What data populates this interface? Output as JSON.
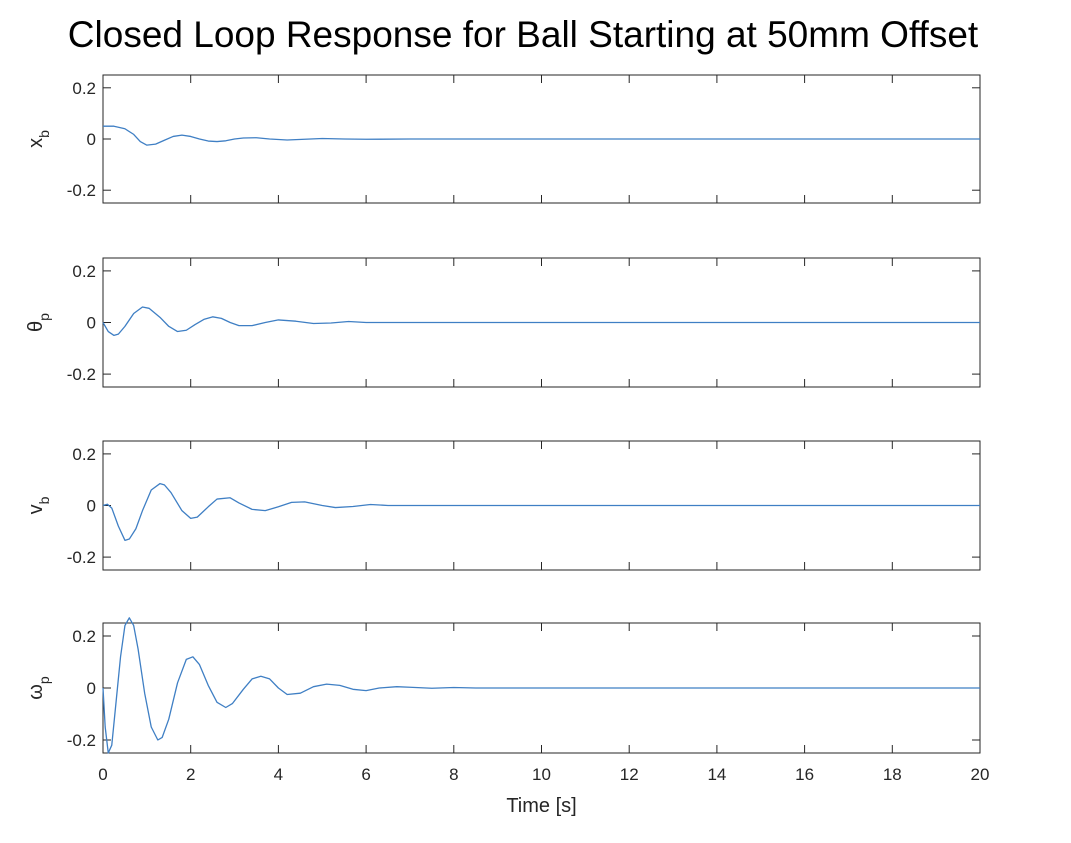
{
  "title": "Closed Loop Response for Ball Starting at 50mm Offset",
  "colors": {
    "line": "#3f7fc4",
    "axes": "#262626",
    "background": "#ffffff"
  },
  "chart_data": {
    "type": "line",
    "layout": "4 stacked subplots sharing x axis",
    "title": "Closed Loop Response for Ball Starting at 50mm Offset",
    "xlabel": "Time [s]",
    "xlim": [
      0,
      20
    ],
    "xticks": [
      0,
      2,
      4,
      6,
      8,
      10,
      12,
      14,
      16,
      18,
      20
    ],
    "grid": false,
    "subplots": [
      {
        "ylabel": "x",
        "ylabel_sub": "b",
        "ylim": [
          -0.25,
          0.25
        ],
        "yticks": [
          -0.2,
          0,
          0.2
        ],
        "yticklabels": [
          "-0.2",
          "0",
          "0.2"
        ],
        "series": [
          {
            "x": [
              0,
              0.25,
              0.5,
              0.7,
              0.85,
              1.0,
              1.2,
              1.4,
              1.6,
              1.8,
              2.0,
              2.2,
              2.4,
              2.6,
              2.8,
              3.0,
              3.2,
              3.5,
              3.8,
              4.2,
              4.6,
              5.0,
              5.5,
              6.0,
              7,
              8,
              9,
              10,
              12,
              14,
              16,
              18,
              20
            ],
            "y": [
              0.05,
              0.05,
              0.04,
              0.018,
              -0.01,
              -0.024,
              -0.02,
              -0.005,
              0.01,
              0.015,
              0.01,
              0.0,
              -0.008,
              -0.01,
              -0.007,
              0.0,
              0.004,
              0.005,
              0.0,
              -0.004,
              -0.001,
              0.002,
              0.0,
              -0.001,
              0,
              0,
              0,
              0,
              0,
              0,
              0,
              0,
              0
            ]
          }
        ]
      },
      {
        "ylabel": "θ",
        "ylabel_sub": "p",
        "ylim": [
          -0.25,
          0.25
        ],
        "yticks": [
          -0.2,
          0,
          0.2
        ],
        "yticklabels": [
          "-0.2",
          "0",
          "0.2"
        ],
        "series": [
          {
            "x": [
              0,
              0.12,
              0.25,
              0.35,
              0.5,
              0.7,
              0.9,
              1.05,
              1.3,
              1.5,
              1.7,
              1.9,
              2.1,
              2.3,
              2.5,
              2.7,
              2.9,
              3.1,
              3.4,
              3.7,
              4.0,
              4.4,
              4.8,
              5.2,
              5.6,
              6.0,
              7,
              8,
              10,
              12,
              14,
              16,
              18,
              20
            ],
            "y": [
              0,
              -0.035,
              -0.05,
              -0.045,
              -0.015,
              0.035,
              0.06,
              0.055,
              0.02,
              -0.015,
              -0.035,
              -0.03,
              -0.008,
              0.012,
              0.022,
              0.016,
              0.0,
              -0.012,
              -0.012,
              0.0,
              0.01,
              0.005,
              -0.004,
              -0.002,
              0.004,
              0.0,
              0,
              0,
              0,
              0,
              0,
              0,
              0,
              0
            ]
          }
        ]
      },
      {
        "ylabel": "v",
        "ylabel_sub": "b",
        "ylim": [
          -0.25,
          0.25
        ],
        "yticks": [
          -0.2,
          0,
          0.2
        ],
        "yticklabels": [
          "-0.2",
          "0",
          "0.2"
        ],
        "series": [
          {
            "x": [
              0,
              0.1,
              0.2,
              0.35,
              0.5,
              0.6,
              0.75,
              0.9,
              1.1,
              1.3,
              1.4,
              1.55,
              1.8,
              2.0,
              2.15,
              2.4,
              2.6,
              2.9,
              3.1,
              3.4,
              3.7,
              4.0,
              4.3,
              4.6,
              5.0,
              5.3,
              5.7,
              6.1,
              6.5,
              7,
              8,
              10,
              12,
              14,
              16,
              18,
              20
            ],
            "y": [
              0,
              0.005,
              -0.01,
              -0.08,
              -0.135,
              -0.13,
              -0.09,
              -0.02,
              0.06,
              0.085,
              0.08,
              0.05,
              -0.02,
              -0.05,
              -0.045,
              -0.005,
              0.025,
              0.03,
              0.01,
              -0.015,
              -0.02,
              -0.005,
              0.012,
              0.014,
              0.0,
              -0.008,
              -0.004,
              0.004,
              0.0,
              0.0,
              0,
              0,
              0,
              0,
              0,
              0,
              0
            ]
          }
        ]
      },
      {
        "ylabel": "ω",
        "ylabel_sub": "p",
        "ylim": [
          -0.25,
          0.25
        ],
        "yticks": [
          -0.2,
          0,
          0.2
        ],
        "yticklabels": [
          "-0.2",
          "0",
          "0.2"
        ],
        "series": [
          {
            "x": [
              0,
              0.05,
              0.12,
              0.2,
              0.3,
              0.4,
              0.5,
              0.6,
              0.7,
              0.8,
              0.95,
              1.1,
              1.25,
              1.35,
              1.5,
              1.7,
              1.9,
              2.05,
              2.2,
              2.4,
              2.6,
              2.8,
              2.95,
              3.2,
              3.4,
              3.6,
              3.8,
              4.0,
              4.2,
              4.5,
              4.8,
              5.1,
              5.4,
              5.7,
              6.0,
              6.3,
              6.7,
              7.0,
              7.5,
              8.0,
              8.5,
              9,
              10,
              12,
              14,
              16,
              18,
              20
            ],
            "y": [
              0.0,
              -0.15,
              -0.25,
              -0.22,
              -0.05,
              0.12,
              0.24,
              0.27,
              0.24,
              0.15,
              -0.02,
              -0.15,
              -0.2,
              -0.19,
              -0.12,
              0.02,
              0.11,
              0.12,
              0.09,
              0.01,
              -0.055,
              -0.075,
              -0.06,
              -0.005,
              0.035,
              0.045,
              0.035,
              0.0,
              -0.025,
              -0.02,
              0.005,
              0.015,
              0.01,
              -0.005,
              -0.01,
              0.0,
              0.005,
              0.003,
              -0.001,
              0.002,
              0.0,
              0.0,
              0,
              0,
              0,
              0,
              0,
              0
            ]
          }
        ]
      }
    ]
  }
}
